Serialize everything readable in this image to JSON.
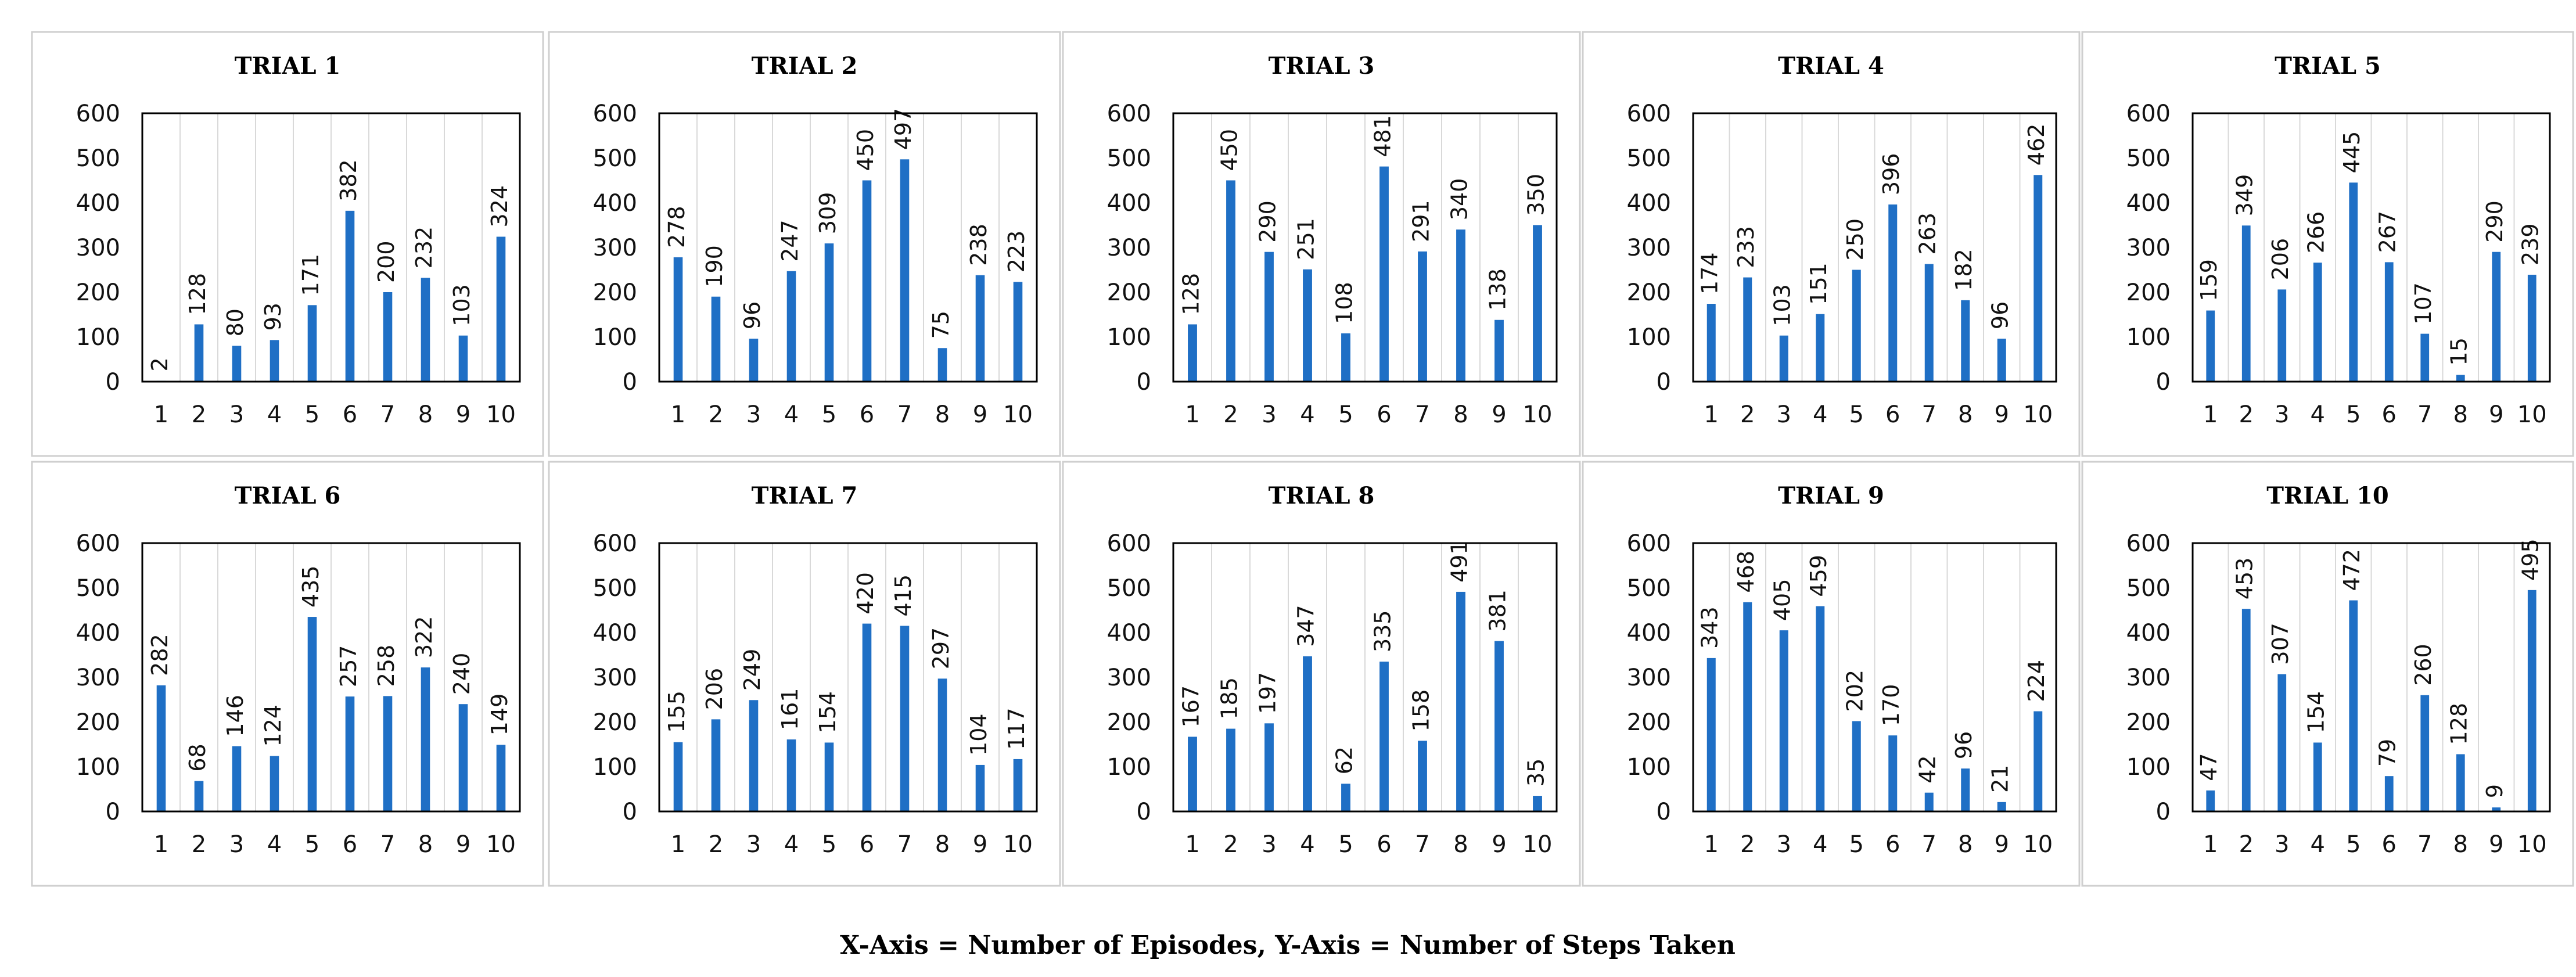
{
  "chart_data": [
    {
      "type": "bar",
      "title": "TRIAL 1",
      "categories": [
        "1",
        "2",
        "3",
        "4",
        "5",
        "6",
        "7",
        "8",
        "9",
        "10"
      ],
      "values": [
        2,
        128,
        80,
        93,
        171,
        382,
        200,
        232,
        103,
        324
      ],
      "ylim": [
        0,
        600
      ],
      "yticks": [
        "0",
        "100",
        "200",
        "300",
        "400",
        "500",
        "600"
      ],
      "xlabel": "",
      "ylabel": ""
    },
    {
      "type": "bar",
      "title": "TRIAL 2",
      "categories": [
        "1",
        "2",
        "3",
        "4",
        "5",
        "6",
        "7",
        "8",
        "9",
        "10"
      ],
      "values": [
        278,
        190,
        96,
        247,
        309,
        450,
        497,
        75,
        238,
        223
      ],
      "ylim": [
        0,
        600
      ],
      "yticks": [
        "0",
        "100",
        "200",
        "300",
        "400",
        "500",
        "600"
      ],
      "xlabel": "",
      "ylabel": ""
    },
    {
      "type": "bar",
      "title": "TRIAL 3",
      "categories": [
        "1",
        "2",
        "3",
        "4",
        "5",
        "6",
        "7",
        "8",
        "9",
        "10"
      ],
      "values": [
        128,
        450,
        290,
        251,
        108,
        481,
        291,
        340,
        138,
        350
      ],
      "ylim": [
        0,
        600
      ],
      "yticks": [
        "0",
        "100",
        "200",
        "300",
        "400",
        "500",
        "600"
      ],
      "xlabel": "",
      "ylabel": ""
    },
    {
      "type": "bar",
      "title": "TRIAL 4",
      "categories": [
        "1",
        "2",
        "3",
        "4",
        "5",
        "6",
        "7",
        "8",
        "9",
        "10"
      ],
      "values": [
        174,
        233,
        103,
        151,
        250,
        396,
        263,
        182,
        96,
        462
      ],
      "ylim": [
        0,
        600
      ],
      "yticks": [
        "0",
        "100",
        "200",
        "300",
        "400",
        "500",
        "600"
      ],
      "xlabel": "",
      "ylabel": ""
    },
    {
      "type": "bar",
      "title": "TRIAL 5",
      "categories": [
        "1",
        "2",
        "3",
        "4",
        "5",
        "6",
        "7",
        "8",
        "9",
        "10"
      ],
      "values": [
        159,
        349,
        206,
        266,
        445,
        267,
        107,
        15,
        290,
        239
      ],
      "ylim": [
        0,
        600
      ],
      "yticks": [
        "0",
        "100",
        "200",
        "300",
        "400",
        "500",
        "600"
      ],
      "xlabel": "",
      "ylabel": ""
    },
    {
      "type": "bar",
      "title": "TRIAL 6",
      "categories": [
        "1",
        "2",
        "3",
        "4",
        "5",
        "6",
        "7",
        "8",
        "9",
        "10"
      ],
      "values": [
        282,
        68,
        146,
        124,
        435,
        257,
        258,
        322,
        240,
        149
      ],
      "ylim": [
        0,
        600
      ],
      "yticks": [
        "0",
        "100",
        "200",
        "300",
        "400",
        "500",
        "600"
      ],
      "xlabel": "",
      "ylabel": ""
    },
    {
      "type": "bar",
      "title": "TRIAL 7",
      "categories": [
        "1",
        "2",
        "3",
        "4",
        "5",
        "6",
        "7",
        "8",
        "9",
        "10"
      ],
      "values": [
        155,
        206,
        249,
        161,
        154,
        420,
        415,
        297,
        104,
        117
      ],
      "ylim": [
        0,
        600
      ],
      "yticks": [
        "0",
        "100",
        "200",
        "300",
        "400",
        "500",
        "600"
      ],
      "xlabel": "",
      "ylabel": ""
    },
    {
      "type": "bar",
      "title": "TRIAL 8",
      "categories": [
        "1",
        "2",
        "3",
        "4",
        "5",
        "6",
        "7",
        "8",
        "9",
        "10"
      ],
      "values": [
        167,
        185,
        197,
        347,
        62,
        335,
        158,
        491,
        381,
        35
      ],
      "ylim": [
        0,
        600
      ],
      "yticks": [
        "0",
        "100",
        "200",
        "300",
        "400",
        "500",
        "600"
      ],
      "xlabel": "",
      "ylabel": ""
    },
    {
      "type": "bar",
      "title": "TRIAL 9",
      "categories": [
        "1",
        "2",
        "3",
        "4",
        "5",
        "6",
        "7",
        "8",
        "9",
        "10"
      ],
      "values": [
        343,
        468,
        405,
        459,
        202,
        170,
        42,
        96,
        21,
        224
      ],
      "ylim": [
        0,
        600
      ],
      "yticks": [
        "0",
        "100",
        "200",
        "300",
        "400",
        "500",
        "600"
      ],
      "xlabel": "",
      "ylabel": ""
    },
    {
      "type": "bar",
      "title": "TRIAL 10",
      "categories": [
        "1",
        "2",
        "3",
        "4",
        "5",
        "6",
        "7",
        "8",
        "9",
        "10"
      ],
      "values": [
        47,
        453,
        307,
        154,
        472,
        79,
        260,
        128,
        9,
        495
      ],
      "ylim": [
        0,
        600
      ],
      "yticks": [
        "0",
        "100",
        "200",
        "300",
        "400",
        "500",
        "600"
      ],
      "xlabel": "",
      "ylabel": ""
    }
  ],
  "caption": "X-Axis = Number of Episodes, Y-Axis = Number of Steps Taken",
  "colors": {
    "bar": "#1f6fc5",
    "grid": "#d9d9d9",
    "frame": "#000000",
    "panel_border": "#cfcfcf"
  }
}
